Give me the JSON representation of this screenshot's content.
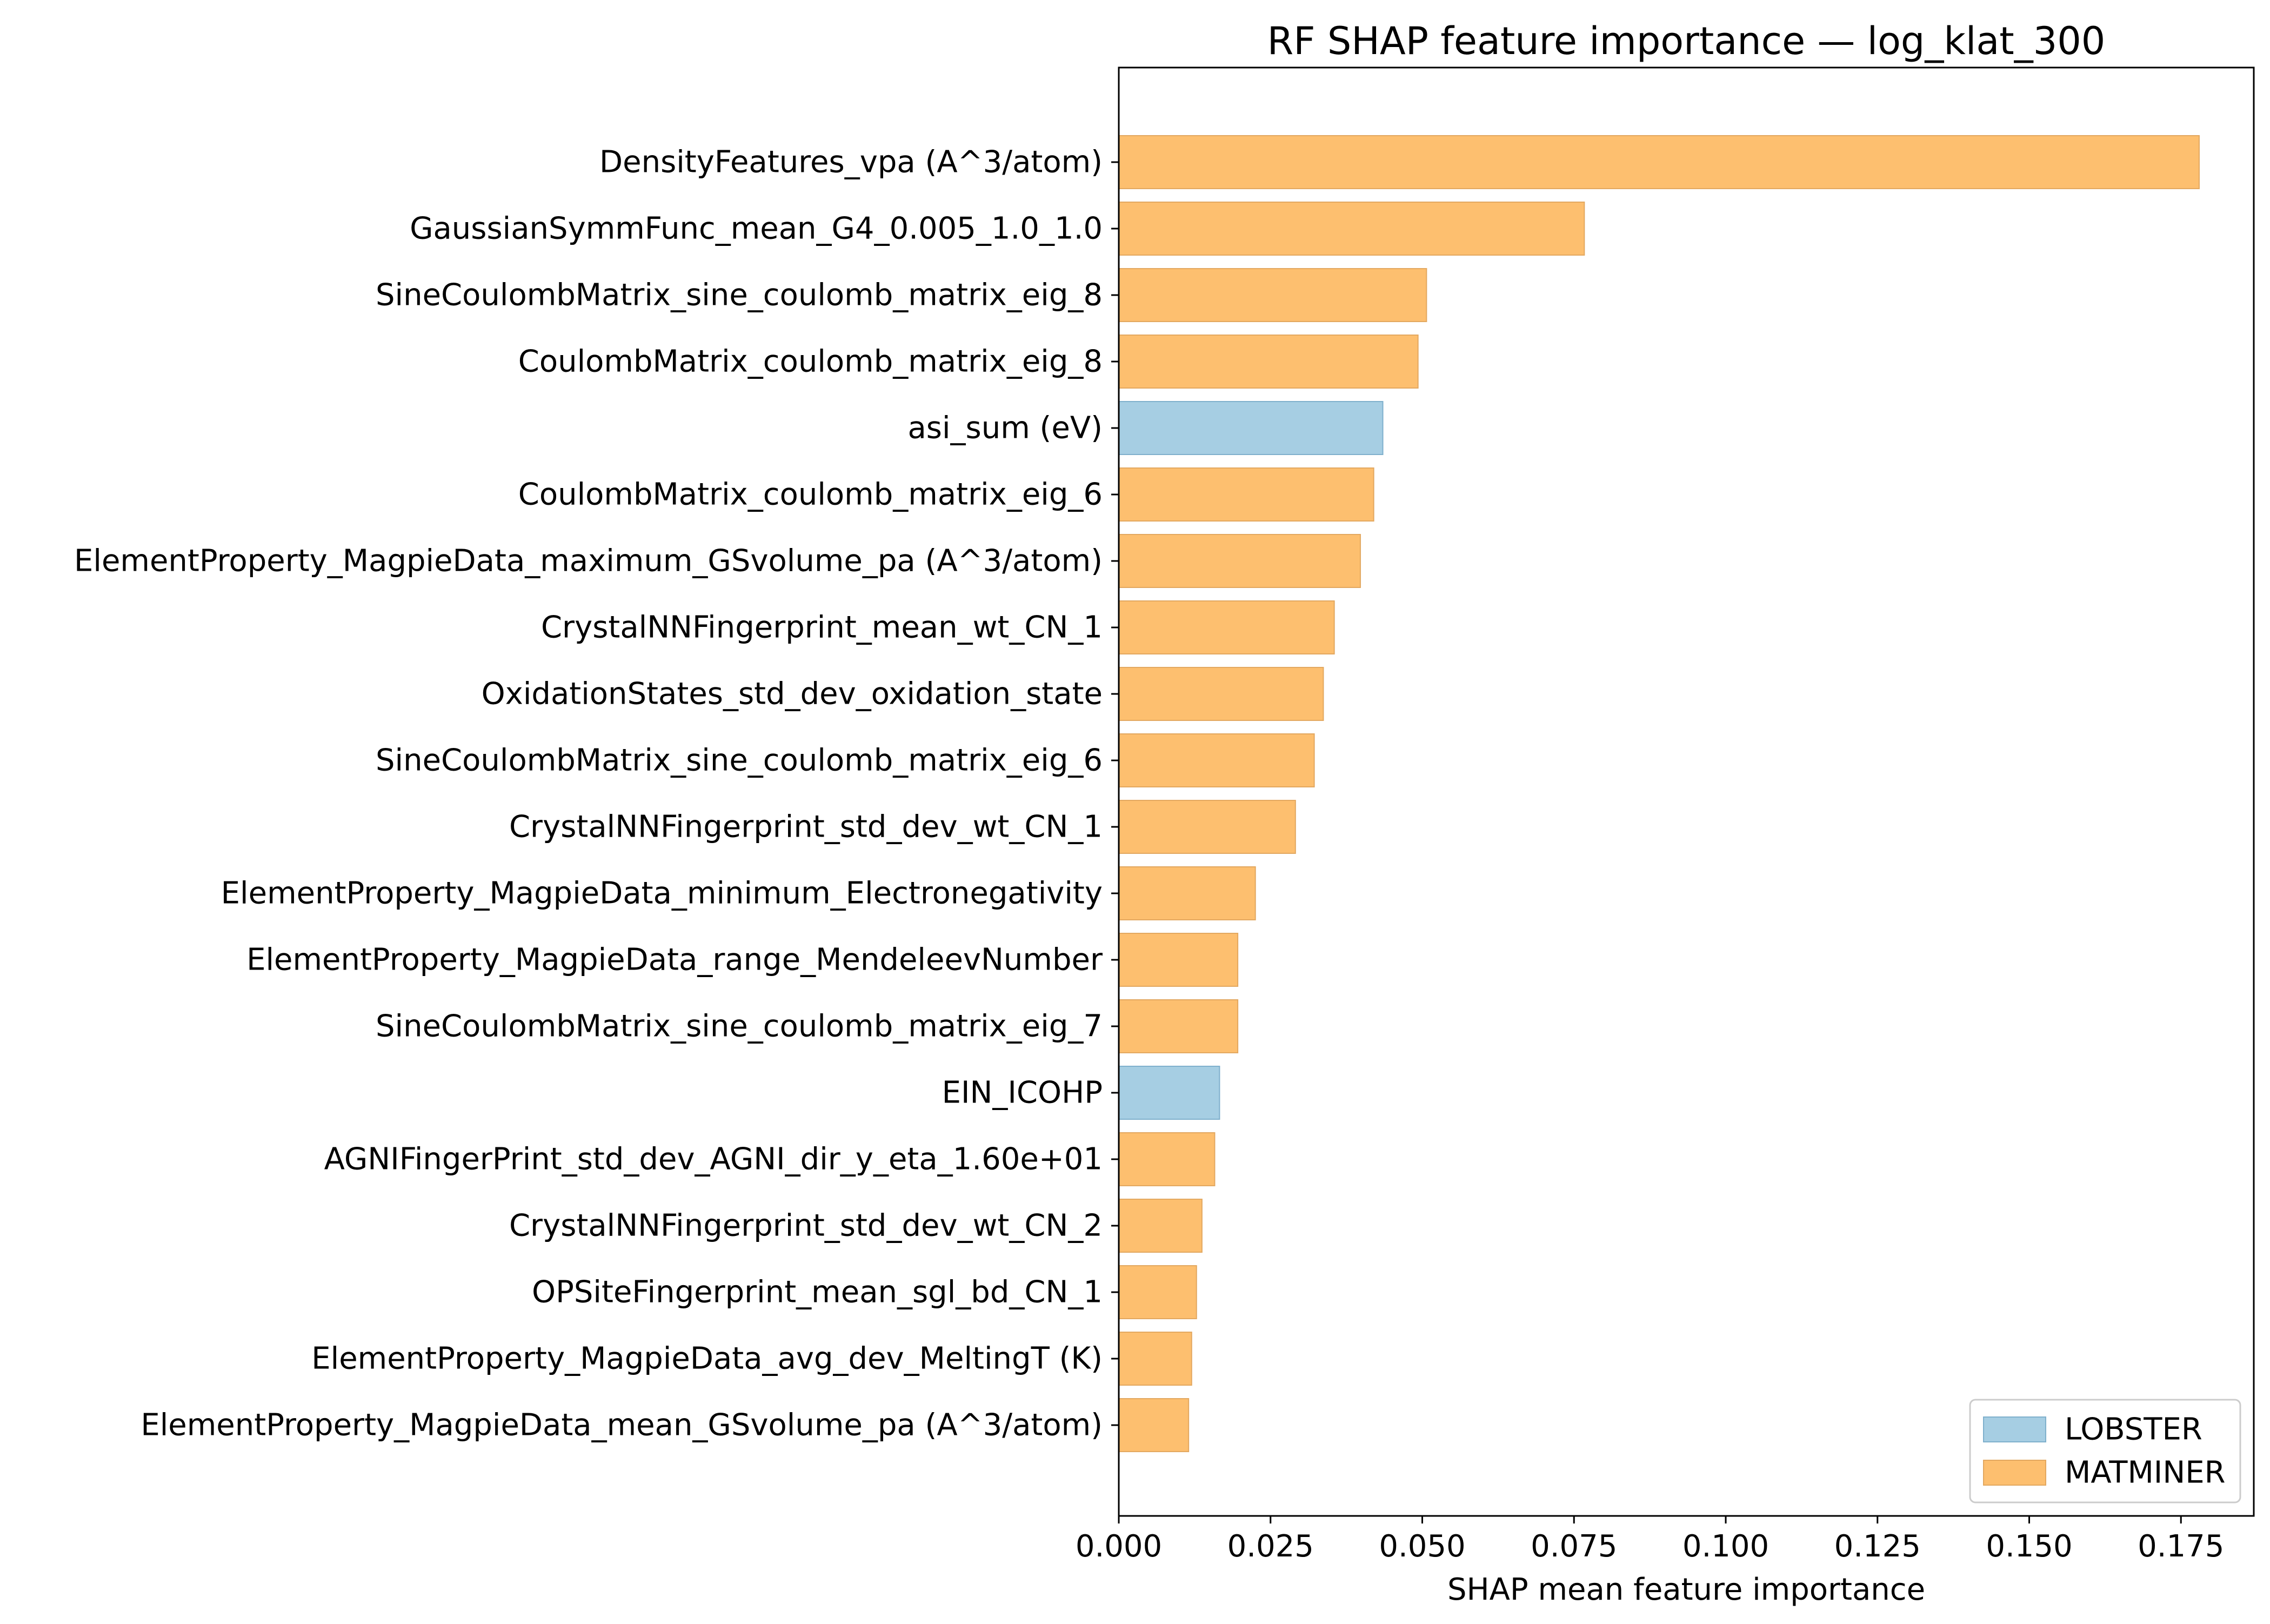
{
  "chart_data": {
    "type": "bar",
    "orientation": "horizontal",
    "title": "RF SHAP feature importance — log_klat_300",
    "xlabel": "SHAP mean feature importance",
    "ylabel": "",
    "xlim": [
      0,
      0.187
    ],
    "xticks": [
      0.0,
      0.025,
      0.05,
      0.075,
      0.1,
      0.125,
      0.15,
      0.175
    ],
    "xtick_labels": [
      "0.000",
      "0.025",
      "0.050",
      "0.075",
      "0.100",
      "0.125",
      "0.150",
      "0.175"
    ],
    "grid": false,
    "legend_position": "bottom-right",
    "legend": [
      {
        "name": "LOBSTER",
        "color": "#a6cee3"
      },
      {
        "name": "MATMINER",
        "color": "#fdbf6f"
      }
    ],
    "bars": [
      {
        "label": "DensityFeatures_vpa (A^3/atom)",
        "value": 0.178,
        "group": "MATMINER"
      },
      {
        "label": "GaussianSymmFunc_mean_G4_0.005_1.0_1.0",
        "value": 0.0767,
        "group": "MATMINER"
      },
      {
        "label": "SineCoulombMatrix_sine_coulomb_matrix_eig_8",
        "value": 0.0507,
        "group": "MATMINER"
      },
      {
        "label": "CoulombMatrix_coulomb_matrix_eig_8",
        "value": 0.0493,
        "group": "MATMINER"
      },
      {
        "label": "asi_sum (eV)",
        "value": 0.0435,
        "group": "LOBSTER"
      },
      {
        "label": "CoulombMatrix_coulomb_matrix_eig_6",
        "value": 0.042,
        "group": "MATMINER"
      },
      {
        "label": "ElementProperty_MagpieData_maximum_GSvolume_pa (A^3/atom)",
        "value": 0.0398,
        "group": "MATMINER"
      },
      {
        "label": "CrystalNNFingerprint_mean_wt_CN_1",
        "value": 0.0355,
        "group": "MATMINER"
      },
      {
        "label": "OxidationStates_std_dev_oxidation_state",
        "value": 0.0337,
        "group": "MATMINER"
      },
      {
        "label": "SineCoulombMatrix_sine_coulomb_matrix_eig_6",
        "value": 0.0322,
        "group": "MATMINER"
      },
      {
        "label": "CrystalNNFingerprint_std_dev_wt_CN_1",
        "value": 0.0291,
        "group": "MATMINER"
      },
      {
        "label": "ElementProperty_MagpieData_minimum_Electronegativity",
        "value": 0.0225,
        "group": "MATMINER"
      },
      {
        "label": "ElementProperty_MagpieData_range_MendeleevNumber",
        "value": 0.0196,
        "group": "MATMINER"
      },
      {
        "label": "SineCoulombMatrix_sine_coulomb_matrix_eig_7",
        "value": 0.0196,
        "group": "MATMINER"
      },
      {
        "label": "EIN_ICOHP",
        "value": 0.0166,
        "group": "LOBSTER"
      },
      {
        "label": "AGNIFingerPrint_std_dev_AGNI_dir_y_eta_1.60e+01",
        "value": 0.0158,
        "group": "MATMINER"
      },
      {
        "label": "CrystalNNFingerprint_std_dev_wt_CN_2",
        "value": 0.0137,
        "group": "MATMINER"
      },
      {
        "label": "OPSiteFingerprint_mean_sgl_bd_CN_1",
        "value": 0.0128,
        "group": "MATMINER"
      },
      {
        "label": "ElementProperty_MagpieData_avg_dev_MeltingT (K)",
        "value": 0.012,
        "group": "MATMINER"
      },
      {
        "label": "ElementProperty_MagpieData_mean_GSvolume_pa (A^3/atom)",
        "value": 0.0115,
        "group": "MATMINER"
      }
    ]
  }
}
